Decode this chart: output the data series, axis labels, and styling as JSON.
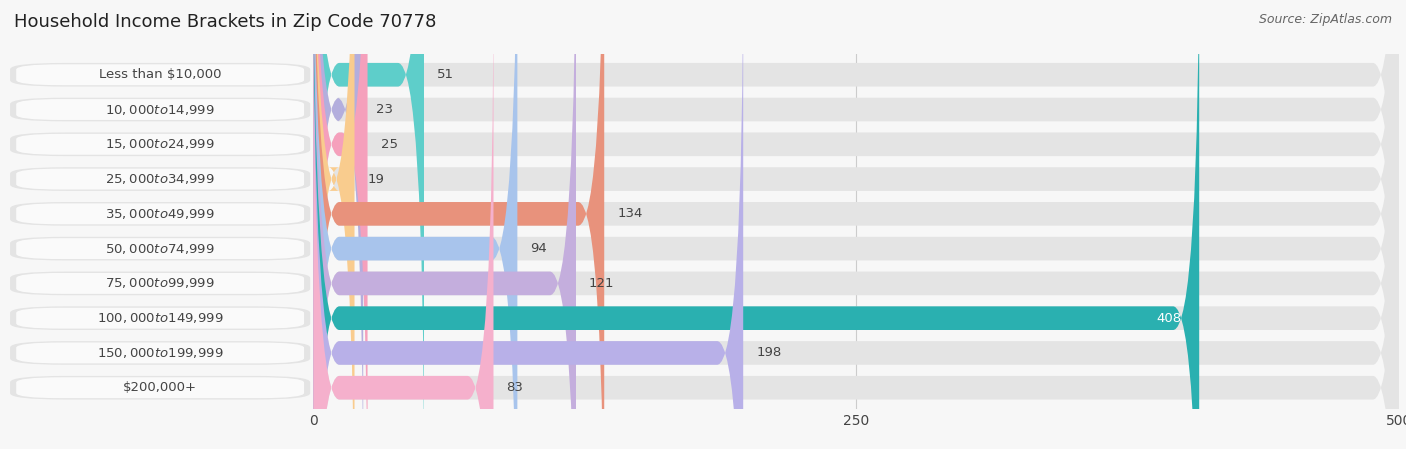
{
  "title": "Household Income Brackets in Zip Code 70778",
  "source": "Source: ZipAtlas.com",
  "categories": [
    "Less than $10,000",
    "$10,000 to $14,999",
    "$15,000 to $24,999",
    "$25,000 to $34,999",
    "$35,000 to $49,999",
    "$50,000 to $74,999",
    "$75,000 to $99,999",
    "$100,000 to $149,999",
    "$150,000 to $199,999",
    "$200,000+"
  ],
  "values": [
    51,
    23,
    25,
    19,
    134,
    94,
    121,
    408,
    198,
    83
  ],
  "bar_colors": [
    "#5ececa",
    "#b3aedd",
    "#f5a0bc",
    "#f9cc8e",
    "#e8927c",
    "#a8c4ec",
    "#c4aedd",
    "#2ab0b0",
    "#b8b0e8",
    "#f5b0cc"
  ],
  "background_color": "#f7f7f7",
  "bar_background_color": "#e4e4e4",
  "xlim": [
    0,
    500
  ],
  "xticks": [
    0,
    250,
    500
  ],
  "label_color": "#444444",
  "value_color_outside": "#444444",
  "value_color_inside": "#ffffff",
  "title_fontsize": 13,
  "label_fontsize": 9.5,
  "value_fontsize": 9.5,
  "source_fontsize": 9,
  "bar_height": 0.68,
  "value_inside_threshold": 380
}
